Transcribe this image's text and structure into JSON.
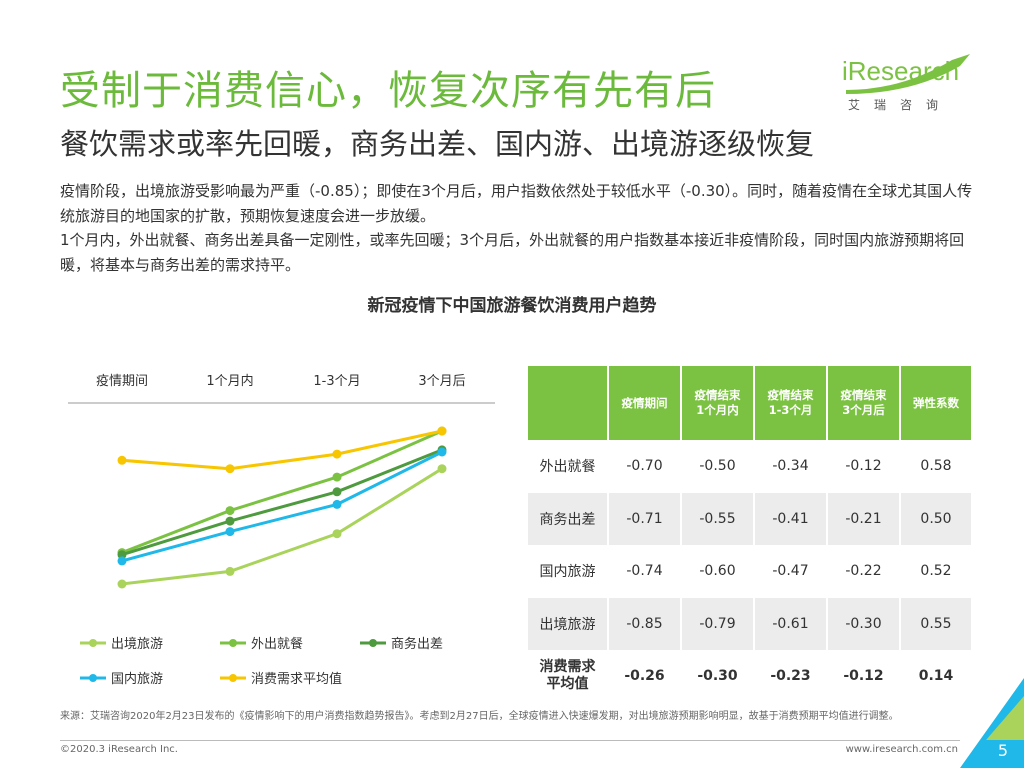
{
  "header": {
    "title": "受制于消费信心，恢复次序有先有后",
    "subtitle": "餐饮需求或率先回暖，商务出差、国内游、出境游逐级恢复"
  },
  "logo": {
    "i_letter": "i",
    "word": "Research",
    "chinese": "艾瑞咨询"
  },
  "description": {
    "paragraph1": "疫情阶段，出境旅游受影响最为严重（-0.85）；即使在3个月后，用户指数依然处于较低水平（-0.30）。同时，随着疫情在全球尤其国人传统旅游目的地国家的扩散，预期恢复速度会进一步放缓。",
    "paragraph2": "1个月内，外出就餐、商务出差具备一定刚性，或率先回暖；3个月后，外出就餐的用户指数基本接近非疫情阶段，同时国内旅游预期将回暖，将基本与商务出差的需求持平。"
  },
  "chart_title": "新冠疫情下中国旅游餐饮消费用户趋势",
  "chart_data": {
    "type": "line",
    "categories": [
      "疫情期间",
      "1个月内",
      "1-3个月",
      "3个月后"
    ],
    "series": [
      {
        "name": "出境旅游",
        "color": "#a9d35a",
        "values": [
          -0.85,
          -0.79,
          -0.61,
          -0.3
        ]
      },
      {
        "name": "外出就餐",
        "color": "#7cc242",
        "values": [
          -0.7,
          -0.5,
          -0.34,
          -0.12
        ]
      },
      {
        "name": "商务出差",
        "color": "#4e9a3e",
        "values": [
          -0.71,
          -0.55,
          -0.41,
          -0.21
        ]
      },
      {
        "name": "国内旅游",
        "color": "#1fb8e8",
        "values": [
          -0.74,
          -0.6,
          -0.47,
          -0.22
        ]
      },
      {
        "name": "消费需求平均值",
        "color": "#f7c600",
        "values": [
          -0.26,
          -0.3,
          -0.23,
          -0.12
        ]
      }
    ],
    "table": {
      "headers": [
        "",
        "疫情期间",
        "疫情结束\n1个月内",
        "疫情结束\n1-3个月",
        "疫情结束\n3个月后",
        "弹性系数"
      ],
      "rows": [
        {
          "label": "外出就餐",
          "values": [
            "-0.70",
            "-0.50",
            "-0.34",
            "-0.12",
            "0.58"
          ]
        },
        {
          "label": "商务出差",
          "values": [
            "-0.71",
            "-0.55",
            "-0.41",
            "-0.21",
            "0.50"
          ]
        },
        {
          "label": "国内旅游",
          "values": [
            "-0.74",
            "-0.60",
            "-0.47",
            "-0.22",
            "0.52"
          ]
        },
        {
          "label": "出境旅游",
          "values": [
            "-0.85",
            "-0.79",
            "-0.61",
            "-0.30",
            "0.55"
          ]
        },
        {
          "label": "消费需求\n平均值",
          "values": [
            "-0.26",
            "-0.30",
            "-0.23",
            "-0.12",
            "0.14"
          ]
        }
      ]
    },
    "legend_position": "bottom"
  },
  "colors": {
    "accent_green": "#7cc242",
    "title_green": "#6cba3c",
    "table_shade": "#ececec"
  },
  "footer": {
    "source": "来源：艾瑞咨询2020年2月23日发布的《疫情影响下的用户消费指数趋势报告》。考虑到2月27日后，全球疫情进入快速爆发期，对出境旅游预期影响明显，故基于消费预期平均值进行调整。",
    "copyright": "©2020.3 iResearch Inc.",
    "website": "www.iresearch.com.cn",
    "page_number": "5"
  }
}
